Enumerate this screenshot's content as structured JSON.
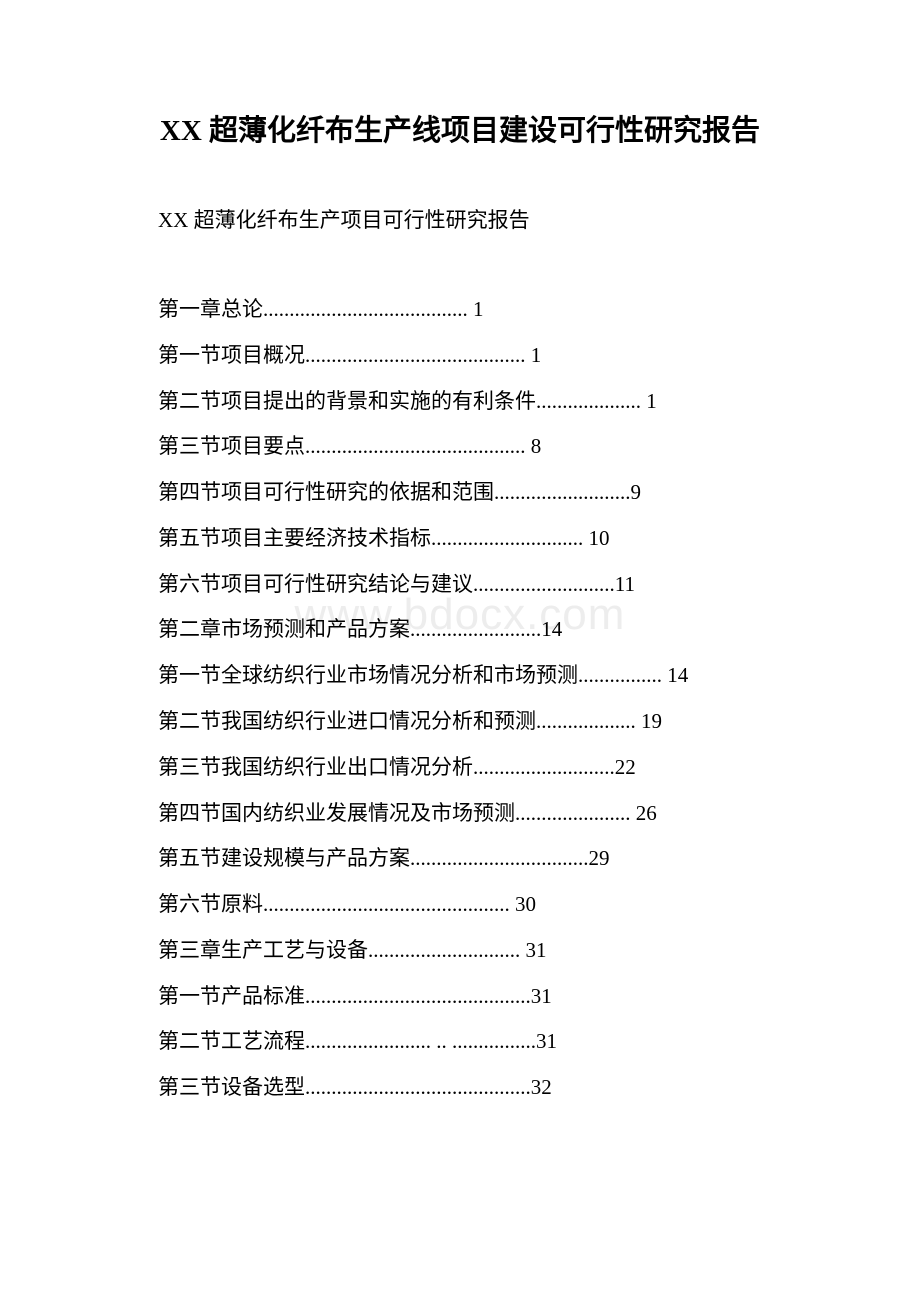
{
  "document": {
    "title": "XX 超薄化纤布生产线项目建设可行性研究报告",
    "subtitle": "XX 超薄化纤布生产项目可行性研究报告",
    "watermark": "www.bdocx.com",
    "toc_items": [
      "第一章总论....................................... 1",
      "第一节项目概况.......................................... 1",
      "第二节项目提出的背景和实施的有利条件.................... 1",
      "第三节项目要点.......................................... 8",
      "第四节项目可行性研究的依据和范围..........................9",
      "第五节项目主要经济技术指标............................. 10",
      "第六节项目可行性研究结论与建议...........................11",
      "第二章市场预测和产品方案.........................14",
      "第一节全球纺织行业市场情况分析和市场预测................ 14",
      "第二节我国纺织行业进口情况分析和预测................... 19",
      "第三节我国纺织行业出口情况分析...........................22",
      "第四节国内纺织业发展情况及市场预测...................... 26",
      "第五节建设规模与产品方案..................................29",
      "第六节原料............................................... 30",
      "第三章生产工艺与设备............................. 31",
      "第一节产品标准...........................................31",
      "第二节工艺流程........................ .. ................31",
      "第三节设备选型...........................................32"
    ]
  },
  "colors": {
    "text": "#000000",
    "background": "#ffffff",
    "watermark": "#ededed"
  },
  "typography": {
    "title_fontsize": 29,
    "body_fontsize": 21,
    "watermark_fontsize": 44,
    "font_family": "SimSun"
  }
}
